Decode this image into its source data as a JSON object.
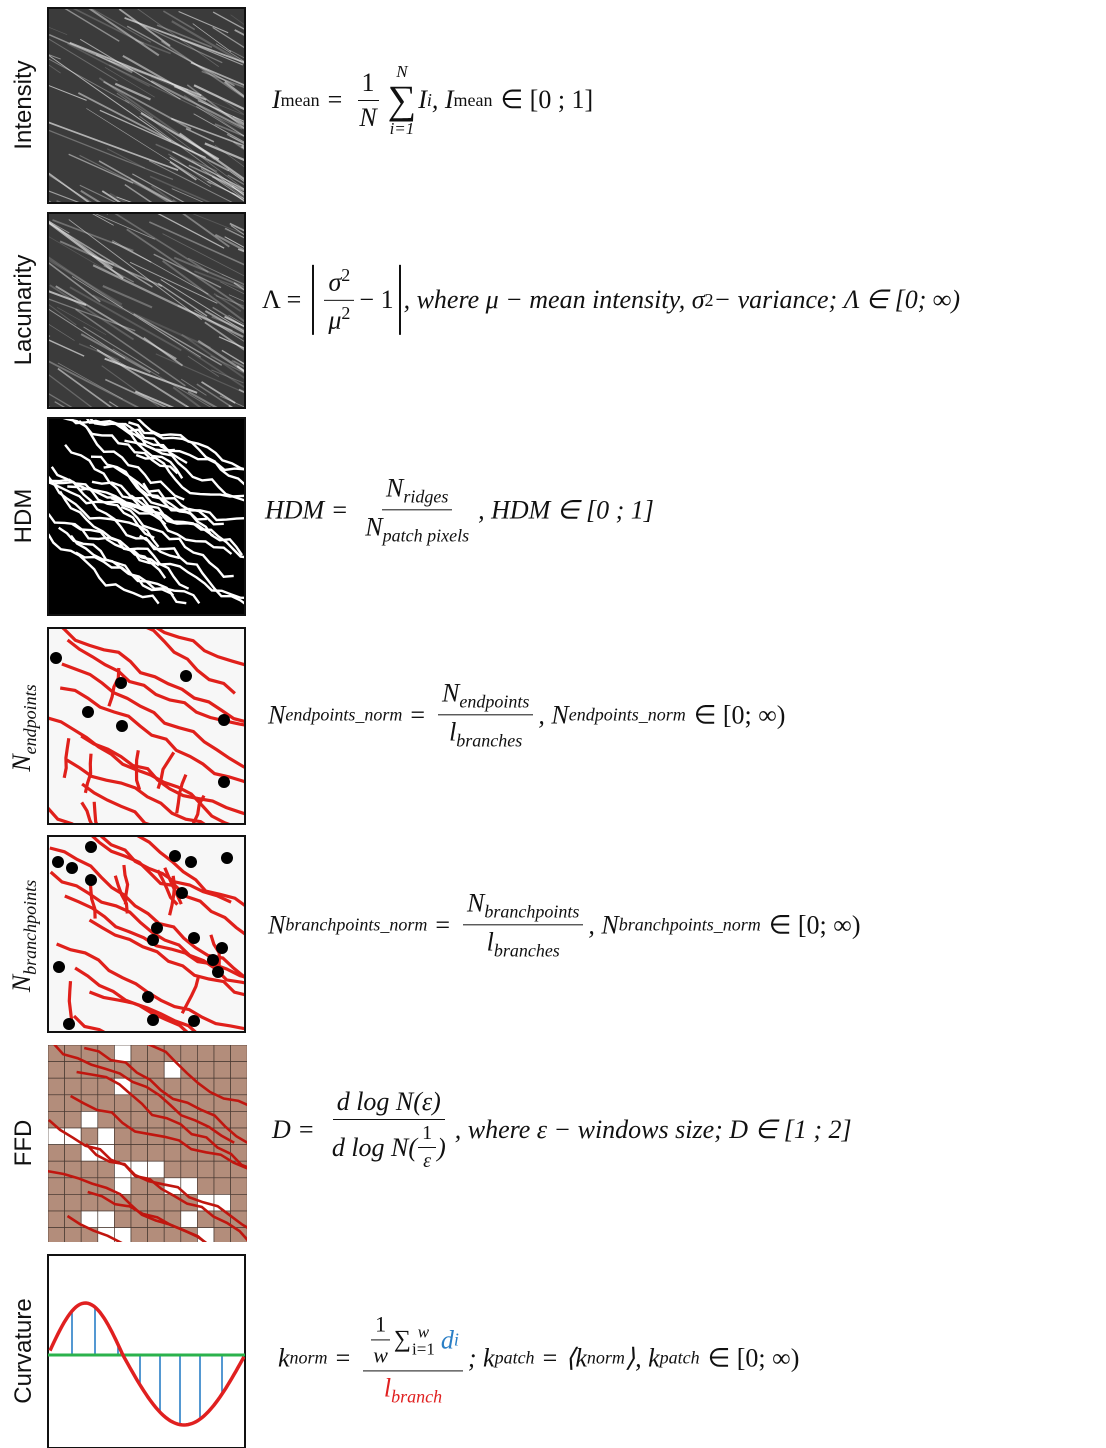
{
  "rows": [
    {
      "label": "Intensity",
      "formula": {
        "a": "I",
        "a_sub": "mean",
        "eq": "=",
        "num": "1",
        "den": "N",
        "sum_top": "N",
        "sum": "∑",
        "sum_bottom": "i=1",
        "b": "I",
        "b_sub": "i",
        "c": ", I",
        "c_sub": "mean",
        "d": "∈ [0 ; 1]"
      }
    },
    {
      "label": "Lacunarity",
      "formula": {
        "a": "Λ =",
        "num": "σ",
        "num_sup": "2",
        "den": "μ",
        "den_sup": "2",
        "minus_one": "− 1",
        "b": ", where μ − mean intensity, σ",
        "b_sup": "2",
        "c": " − variance; Λ ∈ [0; ∞)"
      }
    },
    {
      "label": "HDM",
      "formula": {
        "a": "HDM =",
        "num": "N",
        "num_sub": "ridges",
        "den": "N",
        "den_sub": "patch pixels",
        "b": ", HDM ∈ [0 ; 1]"
      }
    },
    {
      "label": {
        "main": "N",
        "sub": "endpoints"
      },
      "formula": {
        "a": "N",
        "a_sub": "endpoints_norm",
        "eq": "=",
        "num": "N",
        "num_sub": "endpoints",
        "den": "l",
        "den_sub": "branches",
        "b": ", N",
        "b_sub": "endpoints_norm",
        "c": "∈ [0; ∞)"
      }
    },
    {
      "label": {
        "main": "N",
        "sub": "branchpoints"
      },
      "formula": {
        "a": "N",
        "a_sub": "branchpoints_norm",
        "eq": "=",
        "num": "N",
        "num_sub": "branchpoints",
        "den": "l",
        "den_sub": "branches",
        "b": ", N",
        "b_sub": "branchpoints_norm",
        "c": "∈ [0; ∞)"
      }
    },
    {
      "label": "FFD",
      "formula": {
        "a": "D =",
        "num": "d log N(ε)",
        "den_a": "d log N(",
        "den_num": "1",
        "den_den": "ε",
        "den_b": ")",
        "b": ", where ε − windows size; D ∈ [1 ; 2]"
      }
    },
    {
      "label": "Curvature",
      "formula": {
        "a": "k",
        "a_sub": "norm",
        "eq": "=",
        "inner_num": "1",
        "inner_den": "w",
        "sum": "∑",
        "sum_top": "w",
        "sum_bottom": "i=1",
        "d": "d",
        "d_sub": "i",
        "den": "l",
        "den_sub": "branch",
        "b": "; k",
        "b_sub": "patch",
        "eq2": "=",
        "c": "⟨k",
        "c_sub": "norm",
        "c_end": "⟩, k",
        "c_sub2": "patch",
        "e": "∈ [0; ∞)"
      }
    }
  ]
}
